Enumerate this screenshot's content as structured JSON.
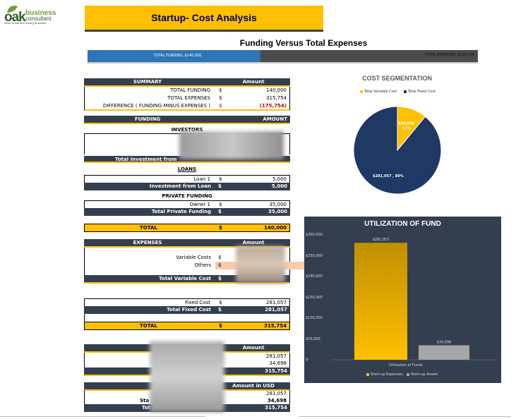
{
  "logo": {
    "main": "oak",
    "top": "business",
    "sub": "consultant",
    "tagline": "Seed Roots and Strong Branches"
  },
  "title": "Startup- Cost Analysis",
  "funding_vs_expenses": {
    "title": "Funding Versus Total Expenses",
    "funding_label": "TOTAL FUNDING,  $140,000",
    "expenses_label": "TOTAL EXPENSES,  $315,754",
    "funding_value": 140000,
    "expenses_value": 315754
  },
  "summary": {
    "header_label": "SUMMARY",
    "header_amount": "Amount",
    "rows": [
      {
        "label": "TOTAL FUNDING",
        "cur": "$",
        "value": "140,000"
      },
      {
        "label": "TOTAL EXPENSES",
        "cur": "$",
        "value": "315,754"
      },
      {
        "label": "DIFFERENCE ( FUNDING MINUS EXPENSES )",
        "cur": "$",
        "value": "(175,754)"
      }
    ]
  },
  "funding": {
    "header_label": "FUNDING",
    "header_amount": "AMOUNT",
    "investors_title": "INVESTORS",
    "investors_total_label": "Total Investment from",
    "loans_title": "LOANS",
    "loan_row": {
      "label": "Loan 1",
      "cur": "$",
      "value": "5,000"
    },
    "loan_total": {
      "label": "Investment from Loan",
      "cur": "$",
      "value": "5,000"
    },
    "private_title": "PRIVATE FUNDING",
    "owner_row": {
      "label": "Owner 1",
      "cur": "$",
      "value": "35,000"
    },
    "private_total": {
      "label": "Total Private Funding",
      "cur": "$",
      "value": "35,000"
    },
    "total": {
      "label": "TOTAL",
      "cur": "$",
      "value": "140,000"
    }
  },
  "expenses": {
    "header_label": "EXPENSES",
    "header_amount": "Amount",
    "variable_row": {
      "label": "Variable Costs",
      "cur": "$"
    },
    "others_row": {
      "label": "Others",
      "cur": "$"
    },
    "variable_total": {
      "label": "Total Variable Cost",
      "cur": "$"
    },
    "fixed_row": {
      "label": "Fixed Cost",
      "cur": "$",
      "value": "281,057"
    },
    "fixed_total": {
      "label": "Total Fixed Cost",
      "cur": "$",
      "value": "281,057"
    },
    "total": {
      "label": "TOTAL",
      "cur": "$",
      "value": "315,754"
    }
  },
  "table_a": {
    "header_amount": "Amount",
    "rows": [
      "281,057",
      "34,698"
    ],
    "total_cur": "$",
    "total": "315,754"
  },
  "table_b": {
    "header_amount": "Amount in USD",
    "rows": [
      {
        "label": "",
        "cur": "",
        "value": "281,057"
      },
      {
        "label": "Sta",
        "cur": "$",
        "value": "34,698"
      }
    ],
    "total_label": "Tot",
    "total_cur": "$",
    "total": "315,754"
  },
  "chart_data": [
    {
      "type": "pie",
      "title": "COST SEGMENTATION",
      "categories": [
        "Total Variable Cost",
        "Total Fixed Cost"
      ],
      "values": [
        34698,
        281057
      ],
      "data_labels": [
        "$34,698 , 11%",
        "$281,057 , 89%"
      ],
      "colors": [
        "#ffc000",
        "#203864"
      ],
      "legend": "top"
    },
    {
      "type": "bar",
      "title": "UTILIZATION OF FUND",
      "xlabel": "Utilization of Funds",
      "series": [
        {
          "name": "Start-up Expenses",
          "values": [
            281057
          ]
        },
        {
          "name": "Start-up Assets",
          "values": [
            34698
          ]
        }
      ],
      "data_labels": [
        "$281,057",
        "$34,698"
      ],
      "yticks": [
        "$300,000",
        "$250,000",
        "$200,000",
        "$150,000",
        "$100,000",
        "$50,000",
        "$-"
      ],
      "ylim": [
        0,
        300000
      ],
      "colors": [
        "#ffc000",
        "#a6a6a6"
      ],
      "legend": "bottom",
      "grid": false
    }
  ]
}
